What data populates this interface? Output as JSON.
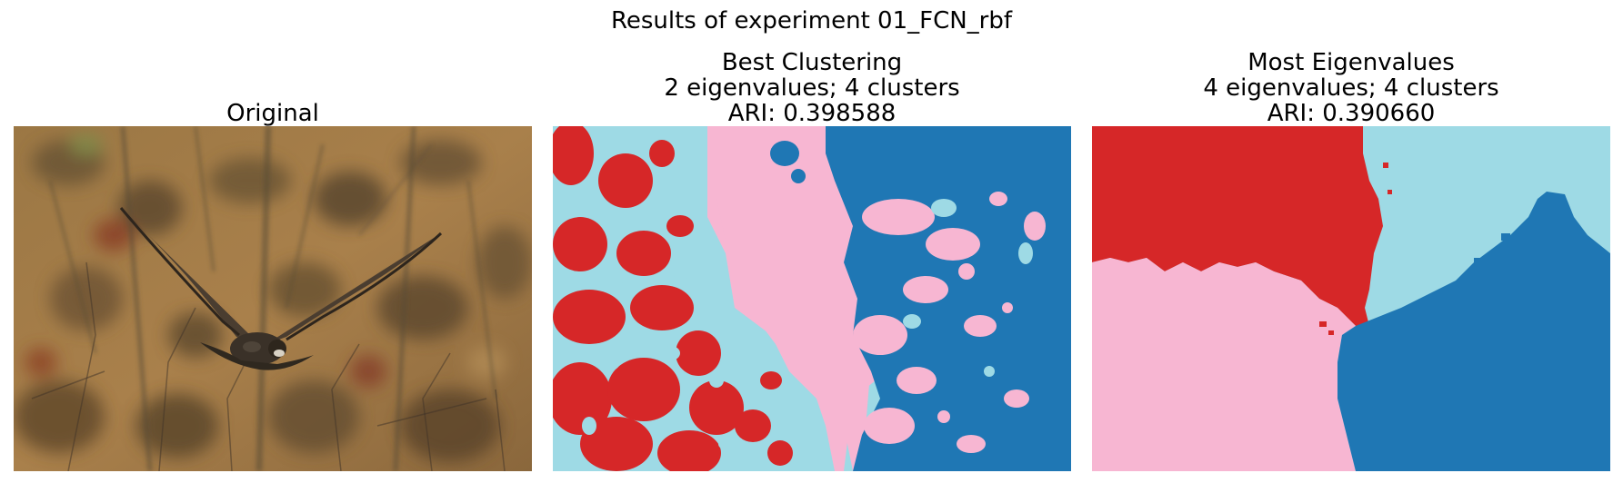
{
  "figure": {
    "suptitle": "Results of experiment 01_FCN_rbf"
  },
  "panels": {
    "original": {
      "title_line1": "Original"
    },
    "best": {
      "title_line1": "Best Clustering",
      "title_line2": "2 eigenvalues; 4 clusters",
      "title_line3": "ARI: 0.398588"
    },
    "most": {
      "title_line1": "Most Eigenvalues",
      "title_line2": "4 eigenvalues; 4 clusters",
      "title_line3": "ARI: 0.390660"
    }
  },
  "cluster_colors": {
    "red": "#d62728",
    "light_blue": "#9edae5",
    "pink": "#f7b6d2",
    "blue": "#1f77b4"
  },
  "photo_colors": {
    "background": "#a47a43",
    "bird": "#3a3128"
  }
}
